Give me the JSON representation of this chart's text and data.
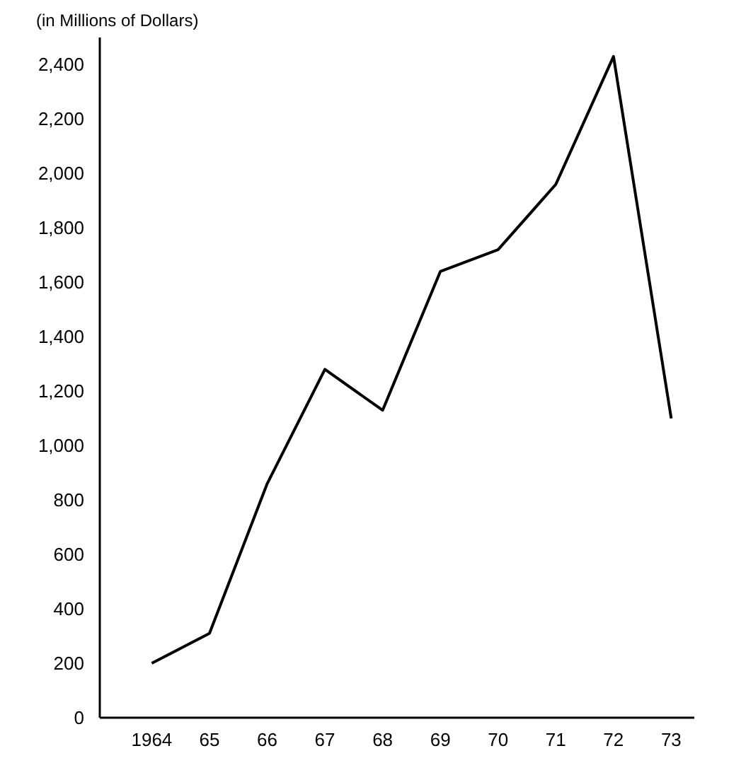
{
  "chart_data": {
    "type": "line",
    "ylabel": "(in Millions of Dollars)",
    "x": [
      1964,
      1965,
      1966,
      1967,
      1968,
      1969,
      1970,
      1971,
      1972,
      1973
    ],
    "series": [
      {
        "color": "#000000",
        "values": [
          200,
          310,
          860,
          1280,
          1130,
          1640,
          1720,
          1960,
          2430,
          1100
        ]
      }
    ],
    "xlim": [
      1963.1,
      1973.4
    ],
    "ylim": [
      0,
      2500
    ],
    "xticks": [
      {
        "value": 1964,
        "label": "1964"
      },
      {
        "value": 1965,
        "label": "65"
      },
      {
        "value": 1966,
        "label": "66"
      },
      {
        "value": 1967,
        "label": "67"
      },
      {
        "value": 1968,
        "label": "68"
      },
      {
        "value": 1969,
        "label": "69"
      },
      {
        "value": 1970,
        "label": "70"
      },
      {
        "value": 1971,
        "label": "71"
      },
      {
        "value": 1972,
        "label": "72"
      },
      {
        "value": 1973,
        "label": "73"
      }
    ],
    "yticks": [
      0,
      200,
      400,
      600,
      800,
      {
        "value": 1000,
        "label": "1,000"
      },
      {
        "value": 1200,
        "label": "1,200"
      },
      {
        "value": 1400,
        "label": "1,400"
      },
      {
        "value": 1600,
        "label": "1,600"
      },
      {
        "value": 1800,
        "label": "1,800"
      },
      {
        "value": 2000,
        "label": "2,000"
      },
      {
        "value": 2200,
        "label": "2,200"
      },
      {
        "value": 2400,
        "label": "2,400"
      }
    ],
    "grid": false,
    "marker": "none",
    "line_style": "solid"
  }
}
